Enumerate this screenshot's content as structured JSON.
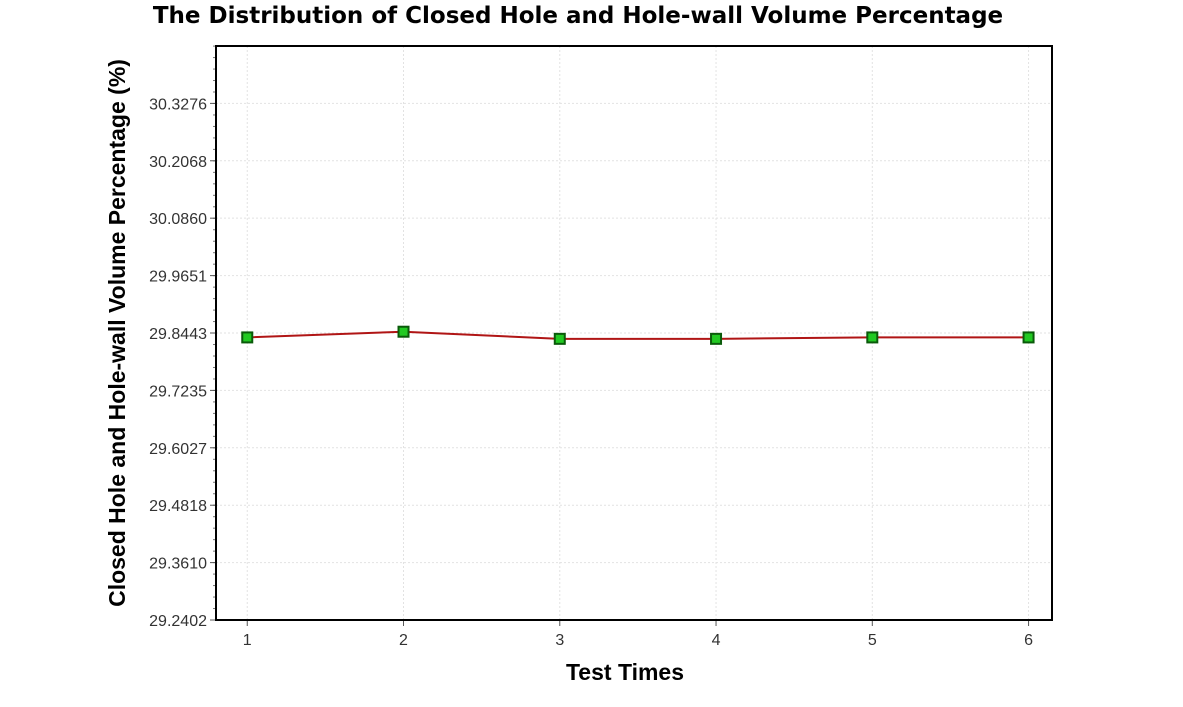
{
  "chart_data": {
    "type": "line",
    "title": "The Distribution of Closed Hole and Hole-wall Volume Percentage",
    "xlabel": "Test Times",
    "ylabel": "Closed Hole and Hole-wall Volume Percentage (%)",
    "categories": [
      "1",
      "2",
      "3",
      "4",
      "5",
      "6"
    ],
    "x": [
      1,
      2,
      3,
      4,
      5,
      6
    ],
    "y_ticks": [
      "29.2402",
      "29.3610",
      "29.4818",
      "29.6027",
      "29.7235",
      "29.8443",
      "29.9651",
      "30.0860",
      "30.2068",
      "30.3276"
    ],
    "ylim": [
      29.2402,
      30.4484
    ],
    "xlim": [
      0.8,
      6.15
    ],
    "grid": true,
    "series": [
      {
        "name": "Closed Hole and Hole-wall Volume Percentage",
        "values": [
          29.835,
          29.847,
          29.832,
          29.832,
          29.835,
          29.835
        ],
        "line_color": "#b01515",
        "marker": "square",
        "marker_fill": "#22c922",
        "marker_edge": "#0a5a0a"
      }
    ]
  }
}
